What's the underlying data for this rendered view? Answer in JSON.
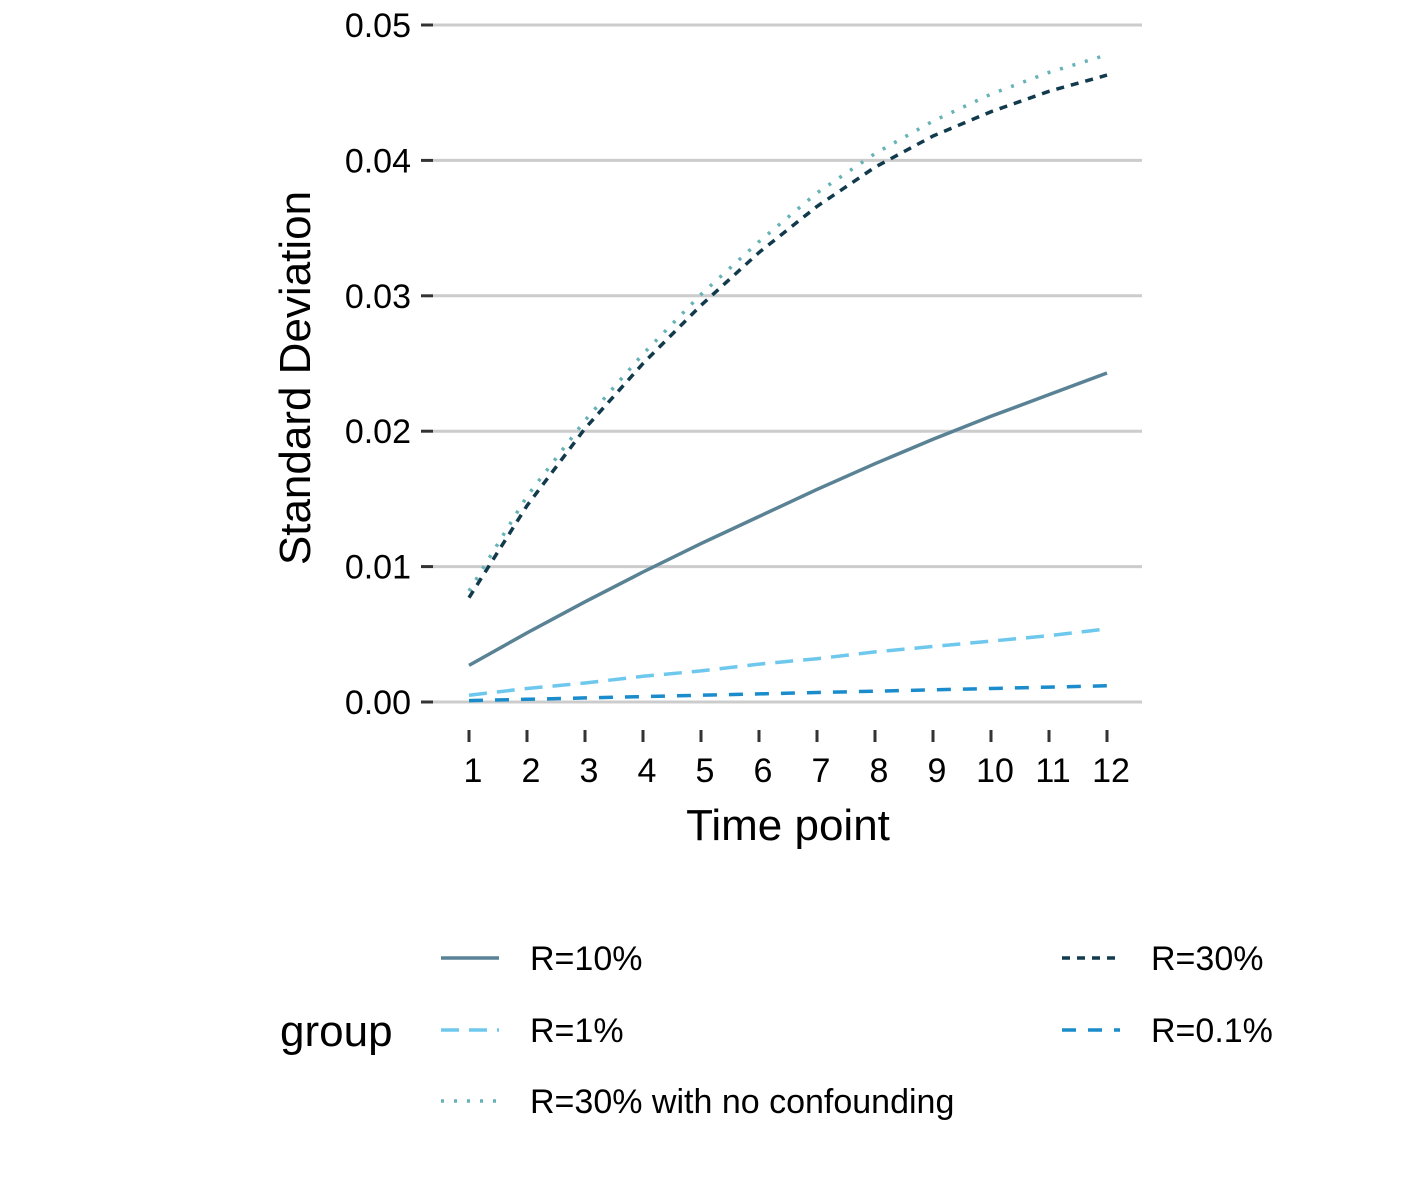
{
  "chart_data": {
    "type": "line",
    "title": "",
    "xlabel": "Time point",
    "ylabel": "Standard Deviation",
    "x": [
      1,
      2,
      3,
      4,
      5,
      6,
      7,
      8,
      9,
      10,
      11,
      12
    ],
    "xlim": [
      1,
      12
    ],
    "ylim": [
      0,
      0.05
    ],
    "yticks": [
      "0.00",
      "0.01",
      "0.02",
      "0.03",
      "0.04",
      "0.05"
    ],
    "xticks": [
      "1",
      "2",
      "3",
      "4",
      "5",
      "6",
      "7",
      "8",
      "9",
      "10",
      "11",
      "12"
    ],
    "grid": "horizontal major gridlines",
    "legend": {
      "title": "group",
      "position": "bottom"
    },
    "series": [
      {
        "name": "R=10%",
        "color": "#5a8295",
        "dash": "solid",
        "values": [
          0.0027,
          0.0051,
          0.0074,
          0.0096,
          0.0117,
          0.0137,
          0.0157,
          0.0176,
          0.0194,
          0.0211,
          0.0227,
          0.0243
        ]
      },
      {
        "name": "R=1%",
        "color": "#6ec8ee",
        "dash": "longdash",
        "values": [
          0.0005,
          0.001,
          0.0014,
          0.0019,
          0.0023,
          0.0028,
          0.0032,
          0.0037,
          0.0041,
          0.0045,
          0.0049,
          0.0054
        ]
      },
      {
        "name": "R=30% with no confounding",
        "color": "#66b2b6",
        "dash": "dotted",
        "values": [
          0.0082,
          0.0152,
          0.0208,
          0.0257,
          0.0301,
          0.034,
          0.0376,
          0.0405,
          0.0429,
          0.0449,
          0.0465,
          0.0478
        ]
      },
      {
        "name": "R=30%",
        "color": "#123a4d",
        "dash": "shortdash",
        "values": [
          0.0077,
          0.0145,
          0.0202,
          0.025,
          0.0293,
          0.0332,
          0.0366,
          0.0395,
          0.0418,
          0.0436,
          0.0451,
          0.0463
        ]
      },
      {
        "name": "R=0.1%",
        "color": "#1a8ccc",
        "dash": "dashed",
        "values": [
          0.0001,
          0.0002,
          0.0003,
          0.0004,
          0.0005,
          0.0006,
          0.0007,
          0.0008,
          0.0009,
          0.001,
          0.0011,
          0.0012
        ]
      }
    ]
  }
}
